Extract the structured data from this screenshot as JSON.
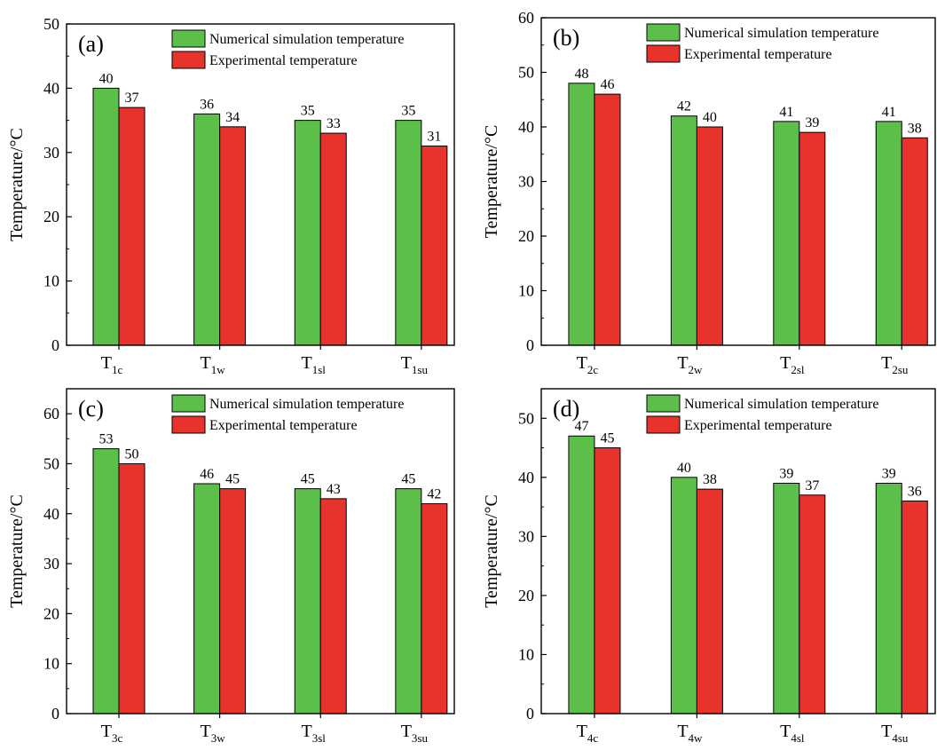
{
  "colors": {
    "simulation": "#5cbf4a",
    "experimental": "#e8322c",
    "axis": "#000000"
  },
  "chart_data": [
    {
      "type": "bar",
      "panel": "(a)",
      "ylabel": "Temperature/°C",
      "ylim": [
        0,
        50
      ],
      "yticks": [
        0,
        10,
        20,
        30,
        40,
        50
      ],
      "categories": [
        {
          "main": "T",
          "sub": "1c"
        },
        {
          "main": "T",
          "sub": "1w"
        },
        {
          "main": "T",
          "sub": "1sl"
        },
        {
          "main": "T",
          "sub": "1su"
        }
      ],
      "legend": "top-right",
      "series": [
        {
          "name": "Numerical simulation temperature",
          "values": [
            40,
            36,
            35,
            35
          ]
        },
        {
          "name": "Experimental temperature",
          "values": [
            37,
            34,
            33,
            31
          ]
        }
      ]
    },
    {
      "type": "bar",
      "panel": "(b)",
      "ylabel": "Temperature/°C",
      "ylim": [
        0,
        60
      ],
      "yticks": [
        0,
        10,
        20,
        30,
        40,
        50,
        60
      ],
      "categories": [
        {
          "main": "T",
          "sub": "2c"
        },
        {
          "main": "T",
          "sub": "2w"
        },
        {
          "main": "T",
          "sub": "2sl"
        },
        {
          "main": "T",
          "sub": "2su"
        }
      ],
      "legend": "top-right",
      "series": [
        {
          "name": "Numerical simulation temperature",
          "values": [
            48,
            42,
            41,
            41
          ]
        },
        {
          "name": "Experimental temperature",
          "values": [
            46,
            40,
            39,
            38
          ]
        }
      ]
    },
    {
      "type": "bar",
      "panel": "(c)",
      "ylabel": "Temperature/°C",
      "ylim": [
        0,
        65
      ],
      "yticks": [
        0,
        10,
        20,
        30,
        40,
        50,
        60
      ],
      "categories": [
        {
          "main": "T",
          "sub": "3c"
        },
        {
          "main": "T",
          "sub": "3w"
        },
        {
          "main": "T",
          "sub": "3sl"
        },
        {
          "main": "T",
          "sub": "3su"
        }
      ],
      "legend": "top-right",
      "series": [
        {
          "name": "Numerical simulation temperature",
          "values": [
            53,
            46,
            45,
            45
          ]
        },
        {
          "name": "Experimental temperature",
          "values": [
            50,
            45,
            43,
            42
          ]
        }
      ]
    },
    {
      "type": "bar",
      "panel": "(d)",
      "ylabel": "Temperature/°C",
      "ylim": [
        0,
        55
      ],
      "yticks": [
        0,
        10,
        20,
        30,
        40,
        50
      ],
      "categories": [
        {
          "main": "T",
          "sub": "4c"
        },
        {
          "main": "T",
          "sub": "4w"
        },
        {
          "main": "T",
          "sub": "4sl"
        },
        {
          "main": "T",
          "sub": "4su"
        }
      ],
      "legend": "top-right",
      "series": [
        {
          "name": "Numerical simulation temperature",
          "values": [
            47,
            40,
            39,
            39
          ]
        },
        {
          "name": "Experimental temperature",
          "values": [
            45,
            38,
            37,
            36
          ]
        }
      ]
    }
  ]
}
